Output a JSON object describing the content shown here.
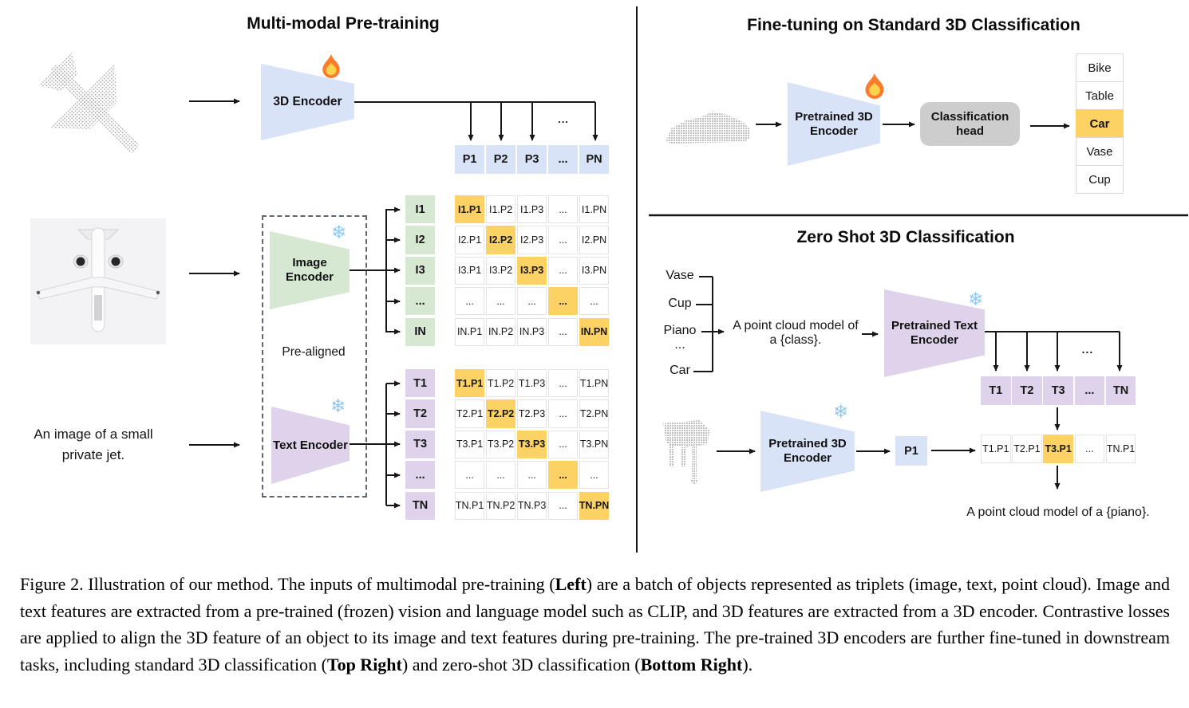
{
  "colors": {
    "blue": "#d9e3f7",
    "green": "#d6e8d2",
    "purple": "#ded3ea",
    "orange": "#fcd265",
    "graybox": "#cdcdcd",
    "cellborder": "#e3e3e3",
    "line": "#161616"
  },
  "icons": {
    "snowflake": "❄"
  },
  "pretraining": {
    "title": "Multi-modal Pre-training",
    "encoder_3d": "3D Encoder",
    "image_encoder": "Image Encoder",
    "text_encoder": "Text Encoder",
    "prealigned": "Pre-aligned",
    "input_text": "An image of a small private jet.",
    "fan_ellipsis": "...",
    "p_row": [
      {
        "t": "P1",
        "s": "b",
        "b": 1
      },
      {
        "t": "P2",
        "s": "b",
        "b": 1
      },
      {
        "t": "P3",
        "s": "b",
        "b": 1
      },
      {
        "t": "...",
        "s": "b",
        "b": 1
      },
      {
        "t": "PN",
        "s": "b",
        "b": 1
      }
    ],
    "i_labels": [
      {
        "t": "I1",
        "s": "g",
        "b": 1
      },
      {
        "t": "I2",
        "s": "g",
        "b": 1
      },
      {
        "t": "I3",
        "s": "g",
        "b": 1
      },
      {
        "t": "...",
        "s": "g",
        "b": 1
      },
      {
        "t": "IN",
        "s": "g",
        "b": 1
      }
    ],
    "i_matrix": [
      {
        "t": "I1.P1",
        "s": "o",
        "b": 1
      },
      {
        "t": "I1.P2",
        "s": "w"
      },
      {
        "t": "I1.P3",
        "s": "w"
      },
      {
        "t": "...",
        "s": "w"
      },
      {
        "t": "I1.PN",
        "s": "w"
      },
      {
        "t": "I2.P1",
        "s": "w"
      },
      {
        "t": "I2.P2",
        "s": "o",
        "b": 1
      },
      {
        "t": "I2.P3",
        "s": "w"
      },
      {
        "t": "...",
        "s": "w"
      },
      {
        "t": "I2.PN",
        "s": "w"
      },
      {
        "t": "I3.P1",
        "s": "w"
      },
      {
        "t": "I3.P2",
        "s": "w"
      },
      {
        "t": "I3.P3",
        "s": "o",
        "b": 1
      },
      {
        "t": "...",
        "s": "w"
      },
      {
        "t": "I3.PN",
        "s": "w"
      },
      {
        "t": "...",
        "s": "w"
      },
      {
        "t": "...",
        "s": "w"
      },
      {
        "t": "...",
        "s": "w"
      },
      {
        "t": "...",
        "s": "o",
        "b": 1
      },
      {
        "t": "...",
        "s": "w"
      },
      {
        "t": "IN.P1",
        "s": "w"
      },
      {
        "t": "IN.P2",
        "s": "w"
      },
      {
        "t": "IN.P3",
        "s": "w"
      },
      {
        "t": "...",
        "s": "w"
      },
      {
        "t": "IN.PN",
        "s": "o",
        "b": 1
      }
    ],
    "t_labels": [
      {
        "t": "T1",
        "s": "p",
        "b": 1
      },
      {
        "t": "T2",
        "s": "p",
        "b": 1
      },
      {
        "t": "T3",
        "s": "p",
        "b": 1
      },
      {
        "t": "...",
        "s": "p",
        "b": 1
      },
      {
        "t": "TN",
        "s": "p",
        "b": 1
      }
    ],
    "t_matrix": [
      {
        "t": "T1.P1",
        "s": "o",
        "b": 1
      },
      {
        "t": "T1.P2",
        "s": "w"
      },
      {
        "t": "T1.P3",
        "s": "w"
      },
      {
        "t": "...",
        "s": "w"
      },
      {
        "t": "T1.PN",
        "s": "w"
      },
      {
        "t": "T2.P1",
        "s": "w"
      },
      {
        "t": "T2.P2",
        "s": "o",
        "b": 1
      },
      {
        "t": "T2.P3",
        "s": "w"
      },
      {
        "t": "...",
        "s": "w"
      },
      {
        "t": "T2.PN",
        "s": "w"
      },
      {
        "t": "T3.P1",
        "s": "w"
      },
      {
        "t": "T3.P2",
        "s": "w"
      },
      {
        "t": "T3.P3",
        "s": "o",
        "b": 1
      },
      {
        "t": "...",
        "s": "w"
      },
      {
        "t": "T3.PN",
        "s": "w"
      },
      {
        "t": "...",
        "s": "w"
      },
      {
        "t": "...",
        "s": "w"
      },
      {
        "t": "...",
        "s": "w"
      },
      {
        "t": "...",
        "s": "o",
        "b": 1
      },
      {
        "t": "...",
        "s": "w"
      },
      {
        "t": "TN.P1",
        "s": "w"
      },
      {
        "t": "TN.P2",
        "s": "w"
      },
      {
        "t": "TN.P3",
        "s": "w"
      },
      {
        "t": "...",
        "s": "w"
      },
      {
        "t": "TN.PN",
        "s": "o",
        "b": 1
      }
    ]
  },
  "finetune": {
    "title": "Fine-tuning on Standard 3D Classification",
    "encoder": "Pretrained 3D Encoder",
    "head": "Classification head",
    "classes": [
      {
        "t": "Bike",
        "s": "w"
      },
      {
        "t": "Table",
        "s": "w"
      },
      {
        "t": "Car",
        "s": "o",
        "b": 1
      },
      {
        "t": "Vase",
        "s": "w"
      },
      {
        "t": "Cup",
        "s": "w"
      }
    ]
  },
  "zeroshot": {
    "title": "Zero Shot 3D Classification",
    "classes": [
      "Vase",
      "Cup",
      "Piano",
      "...",
      "Car"
    ],
    "prompt_line1": "A point cloud model of",
    "prompt_line2": "a {class}.",
    "text_encoder": "Pretrained Text Encoder",
    "encoder": "Pretrained 3D Encoder",
    "p1": "P1",
    "fan_ellipsis": "...",
    "t_row": [
      {
        "t": "T1",
        "s": "p",
        "b": 1
      },
      {
        "t": "T2",
        "s": "p",
        "b": 1
      },
      {
        "t": "T3",
        "s": "p",
        "b": 1
      },
      {
        "t": "...",
        "s": "p",
        "b": 1
      },
      {
        "t": "TN",
        "s": "p",
        "b": 1
      }
    ],
    "score_row": [
      {
        "t": "T1.P1",
        "s": "w"
      },
      {
        "t": "T2.P1",
        "s": "w"
      },
      {
        "t": "T3.P1",
        "s": "o",
        "b": 1
      },
      {
        "t": "...",
        "s": "w"
      },
      {
        "t": "TN.P1",
        "s": "w"
      }
    ],
    "result": "A point cloud model of a {piano}."
  },
  "caption": {
    "parts": [
      {
        "t": "Figure 2. Illustration of our method. The inputs of multimodal pre-training ("
      },
      {
        "t": "Left",
        "b": 1
      },
      {
        "t": ") are a batch of objects represented as triplets (image, text, point cloud). Image and text features are extracted from a pre-trained (frozen) vision and language model such as CLIP, and 3D features are extracted from a 3D encoder. Contrastive losses are applied to align the 3D feature of an object to its image and text features during pre-training. The pre-trained 3D encoders are further fine-tuned in downstream tasks, including standard 3D classification ("
      },
      {
        "t": "Top Right",
        "b": 1
      },
      {
        "t": ") and zero-shot 3D classification ("
      },
      {
        "t": "Bottom Right",
        "b": 1
      },
      {
        "t": ")."
      }
    ]
  }
}
